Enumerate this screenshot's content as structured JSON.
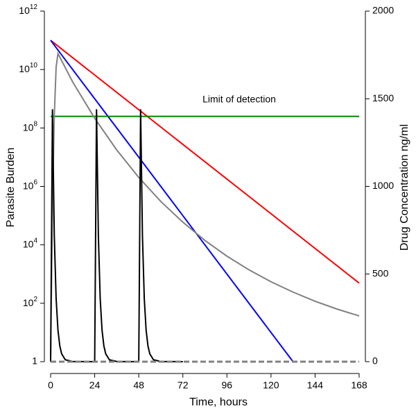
{
  "chart_data": {
    "type": "line",
    "xlabel": "Time, hours",
    "ylabel": "Parasite Burden",
    "y2label": "Drug Concentration ng/ml",
    "annotation": "Limit of detection",
    "xlim": [
      0,
      168
    ],
    "xticks": [
      0,
      24,
      48,
      72,
      96,
      120,
      144,
      168
    ],
    "ylim": [
      1,
      1000000000000
    ],
    "yscale": "log",
    "yticks": [
      1,
      {
        "value": 100,
        "label": "10",
        "sup": "2"
      },
      {
        "value": 10000,
        "label": "10",
        "sup": "4"
      },
      {
        "value": 1000000,
        "label": "10",
        "sup": "6"
      },
      {
        "value": 100000000,
        "label": "10",
        "sup": "8"
      },
      {
        "value": 10000000000,
        "label": "10",
        "sup": "10"
      },
      {
        "value": 1000000000000,
        "label": "10",
        "sup": "12"
      }
    ],
    "y2lim": [
      0,
      2000
    ],
    "y2ticks": [
      0,
      500,
      1000,
      1500,
      2000
    ],
    "series": [
      {
        "color": "#ff0000",
        "x": [
          0,
          168
        ],
        "values": [
          100000000000,
          490
        ]
      },
      {
        "color": "#0000ff",
        "x": [
          0,
          132
        ],
        "values": [
          100000000000,
          1
        ]
      },
      {
        "color": "#008000",
        "x": [
          0,
          168
        ],
        "values": [
          250000000,
          250000000
        ]
      },
      {
        "color": "#808080",
        "axis": "y2",
        "x": [
          0,
          1,
          2,
          3,
          4,
          12,
          24,
          36,
          48,
          60,
          72,
          84,
          96,
          108,
          120,
          132,
          144,
          156,
          168
        ],
        "values": [
          0,
          900,
          1400,
          1680,
          1758,
          1596,
          1389,
          1208,
          1051,
          914,
          796,
          692,
          602,
          524,
          456,
          397,
          345,
          300,
          261
        ]
      },
      {
        "color": "#000000",
        "axis": "y2",
        "x": [
          0,
          1,
          2,
          3,
          4,
          5,
          6,
          8,
          12,
          24,
          25,
          26,
          27,
          28,
          29,
          30,
          32,
          36,
          48,
          49,
          50,
          51,
          52,
          53,
          54,
          56,
          60,
          72
        ],
        "values": [
          0,
          1440,
          720,
          360,
          180,
          90,
          45,
          11,
          1,
          0,
          1440,
          720,
          360,
          180,
          90,
          45,
          11,
          1,
          0,
          1440,
          720,
          360,
          180,
          90,
          45,
          11,
          1,
          0
        ]
      },
      {
        "color": "#808080",
        "axis": "y2",
        "dash": true,
        "x": [
          0,
          168
        ],
        "values": [
          0,
          0
        ]
      }
    ]
  }
}
